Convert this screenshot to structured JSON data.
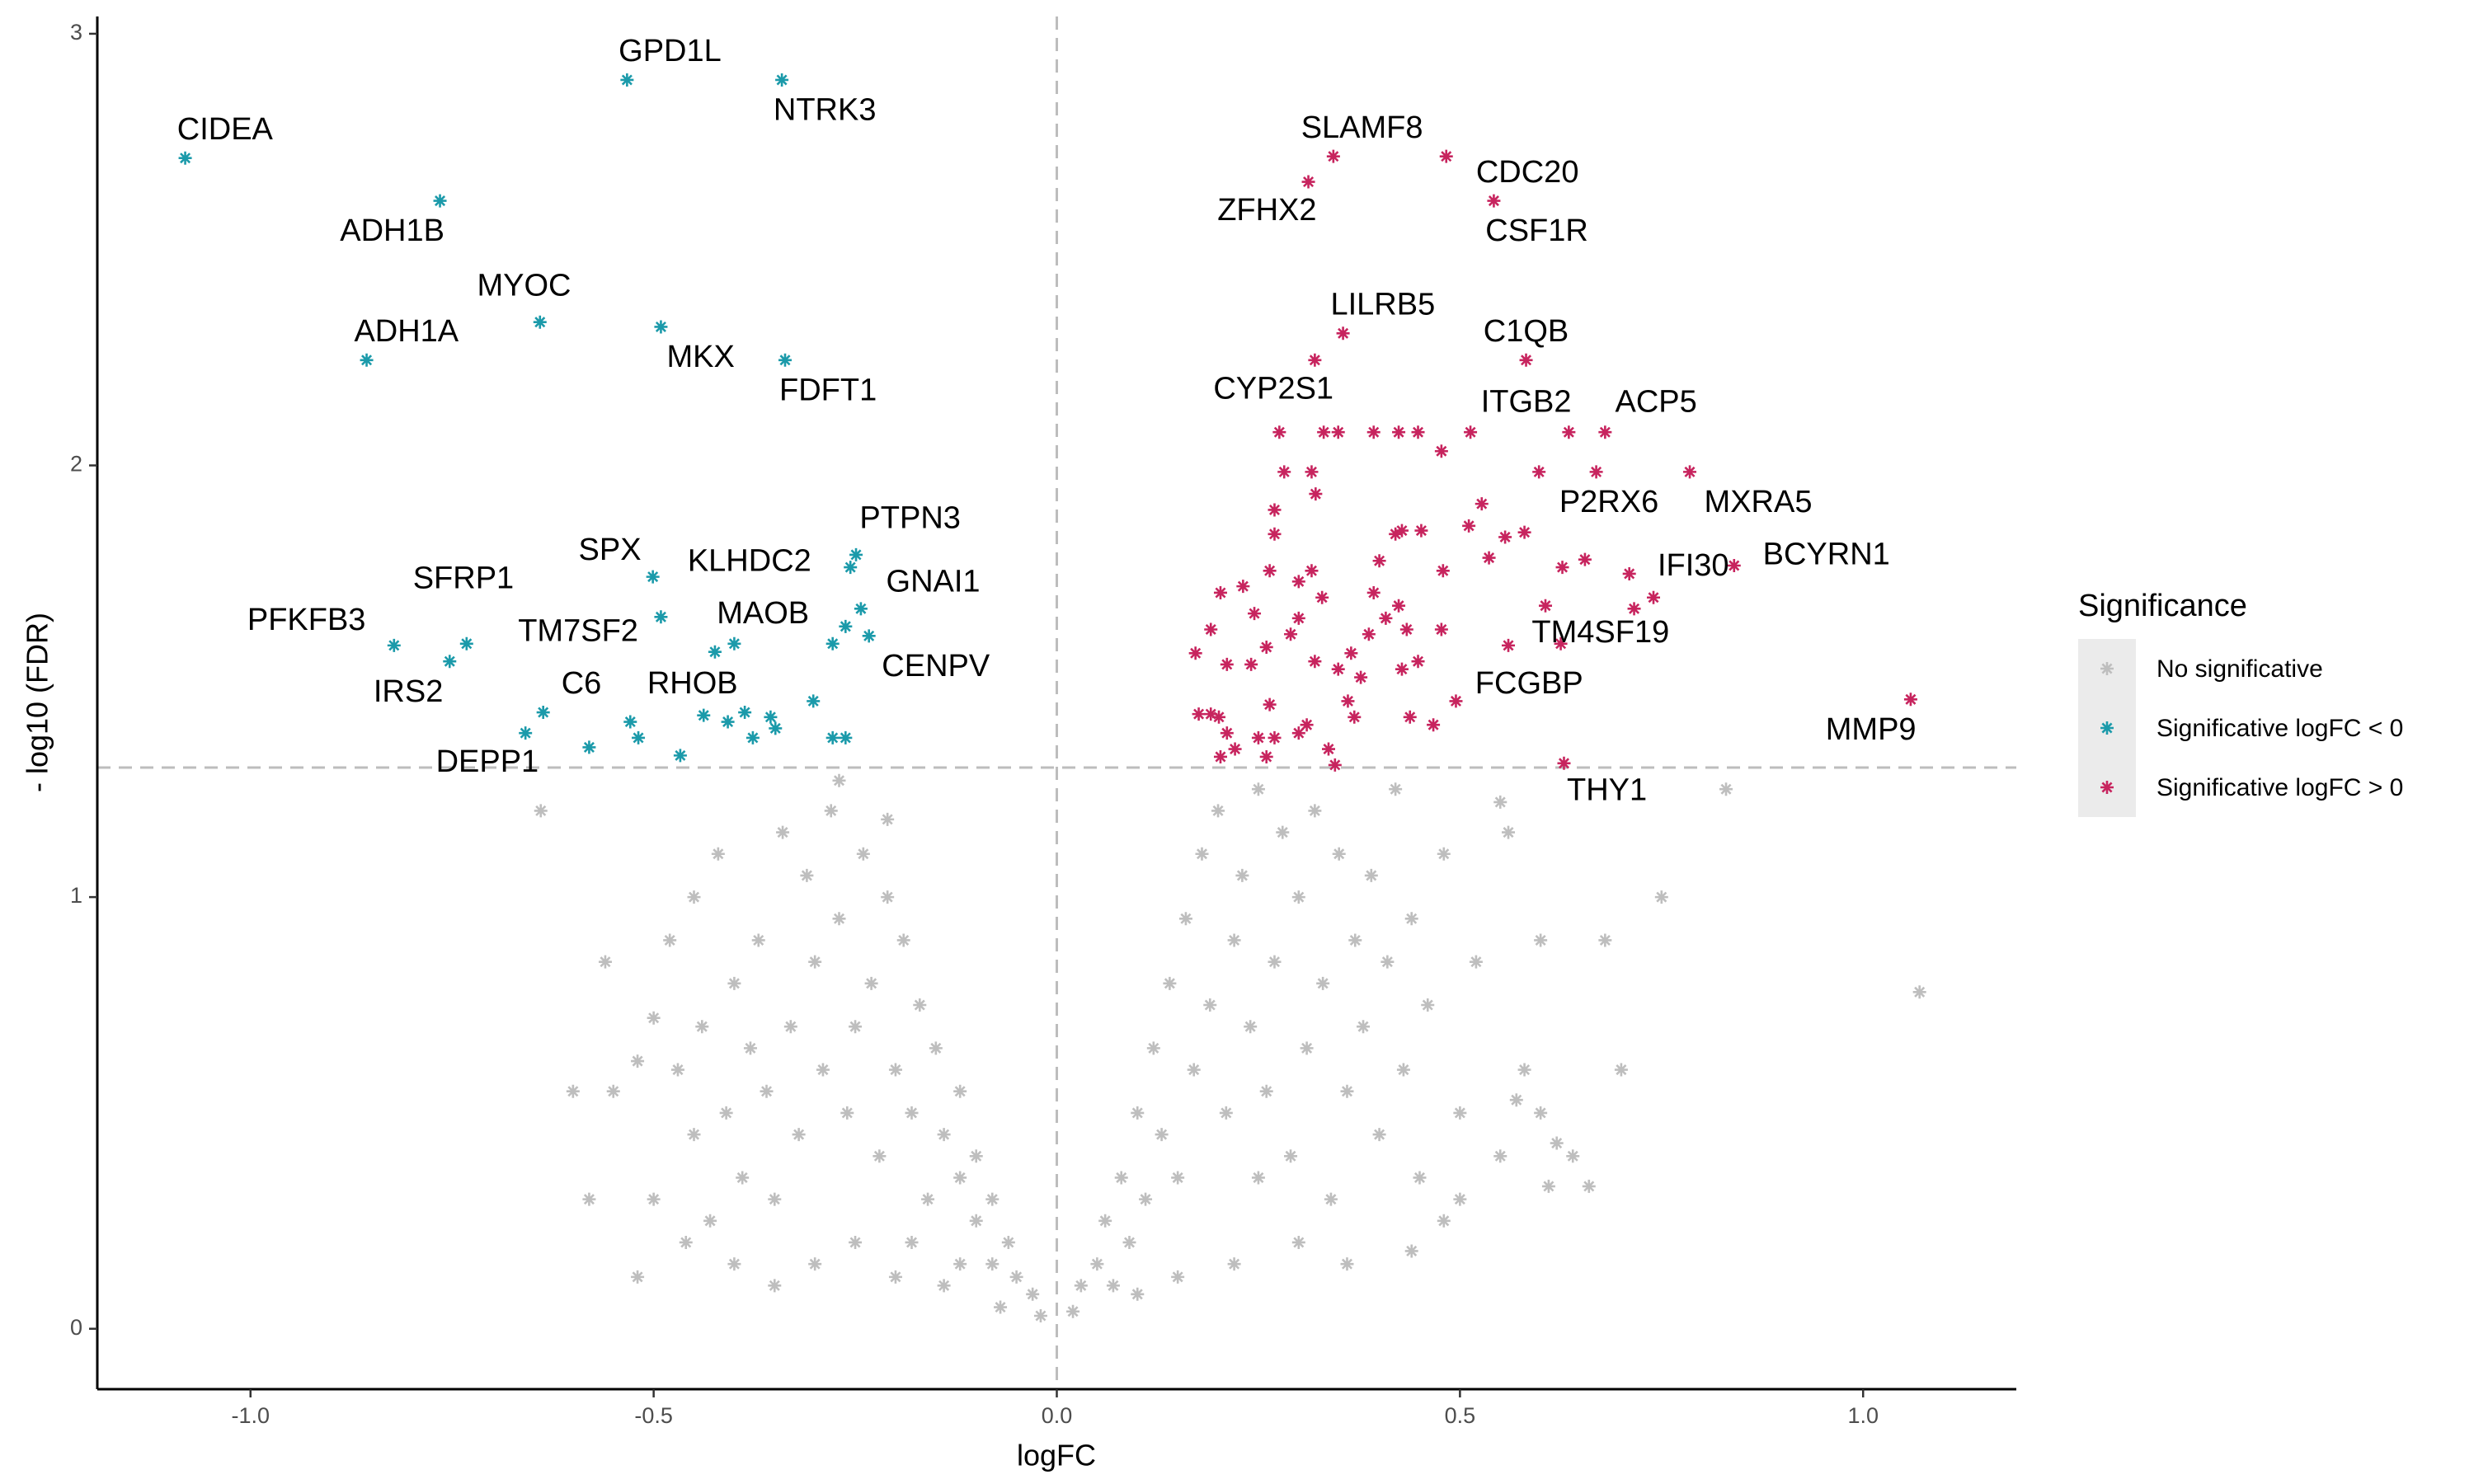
{
  "chart_data": {
    "type": "scatter",
    "xlabel": "logFC",
    "ylabel": "- log10 (FDR)",
    "xlim": [
      -1.19,
      1.19
    ],
    "ylim": [
      -0.14,
      3.04
    ],
    "xticks": [
      {
        "value": -1,
        "label": "-1.0"
      },
      {
        "value": -0.5,
        "label": "-0.5"
      },
      {
        "value": 0,
        "label": "0.0"
      },
      {
        "value": 0.5,
        "label": "0.5"
      },
      {
        "value": 1,
        "label": "1.0"
      }
    ],
    "yticks": [
      0,
      1,
      2,
      3
    ],
    "grid": false,
    "vlines": [
      0
    ],
    "hlines": [
      1.3
    ],
    "legend": "right",
    "legend_title": "Significance",
    "series": [
      {
        "name": "No significative",
        "color": "#bebebe",
        "x": [
          -0.02,
          -0.03,
          -0.05,
          -0.06,
          -0.08,
          -0.08,
          -0.1,
          -0.1,
          -0.12,
          -0.12,
          -0.14,
          -0.15,
          -0.16,
          -0.17,
          -0.18,
          -0.19,
          -0.2,
          -0.21,
          -0.22,
          -0.23,
          -0.24,
          -0.25,
          -0.26,
          -0.27,
          -0.28,
          -0.29,
          -0.3,
          -0.31,
          -0.32,
          -0.33,
          -0.34,
          -0.35,
          -0.36,
          -0.37,
          -0.38,
          -0.39,
          -0.4,
          -0.41,
          -0.42,
          -0.43,
          -0.44,
          -0.45,
          -0.46,
          -0.47,
          -0.48,
          -0.5,
          -0.52,
          -0.52,
          -0.5,
          -0.55,
          -0.56,
          -0.6,
          -0.58,
          -0.64,
          -0.45,
          -0.27,
          -0.21,
          -0.18,
          -0.14,
          -0.25,
          -0.3,
          -0.35,
          -0.12,
          -0.07,
          -0.2,
          -0.4,
          0.02,
          0.03,
          0.05,
          0.06,
          0.07,
          0.08,
          0.09,
          0.1,
          0.11,
          0.12,
          0.13,
          0.14,
          0.15,
          0.16,
          0.17,
          0.18,
          0.19,
          0.2,
          0.21,
          0.22,
          0.23,
          0.24,
          0.25,
          0.26,
          0.27,
          0.28,
          0.29,
          0.3,
          0.31,
          0.32,
          0.33,
          0.34,
          0.35,
          0.36,
          0.37,
          0.38,
          0.39,
          0.4,
          0.41,
          0.42,
          0.43,
          0.44,
          0.45,
          0.46,
          0.48,
          0.5,
          0.52,
          0.55,
          0.56,
          0.58,
          0.6,
          0.57,
          0.6,
          0.61,
          0.62,
          0.64,
          0.66,
          0.68,
          0.7,
          0.75,
          0.83,
          1.07,
          0.48,
          0.44,
          0.36,
          0.3,
          0.22,
          0.15,
          0.1,
          0.25,
          0.5,
          0.55
        ],
        "values": [
          0.03,
          0.08,
          0.12,
          0.2,
          0.15,
          0.3,
          0.25,
          0.4,
          0.35,
          0.55,
          0.45,
          0.65,
          0.3,
          0.75,
          0.5,
          0.9,
          0.6,
          1.0,
          0.4,
          0.8,
          1.1,
          0.7,
          0.5,
          0.95,
          1.2,
          0.6,
          0.85,
          1.05,
          0.45,
          0.7,
          1.15,
          0.3,
          0.55,
          0.9,
          0.65,
          0.35,
          0.8,
          0.5,
          1.1,
          0.25,
          0.7,
          0.45,
          0.2,
          0.6,
          0.9,
          0.3,
          0.12,
          0.62,
          0.72,
          0.55,
          0.85,
          0.55,
          0.3,
          1.2,
          1.0,
          1.27,
          1.18,
          0.2,
          0.1,
          0.2,
          0.15,
          0.1,
          0.15,
          0.05,
          0.12,
          0.15,
          0.04,
          0.1,
          0.15,
          0.25,
          0.1,
          0.35,
          0.2,
          0.5,
          0.3,
          0.65,
          0.45,
          0.8,
          0.35,
          0.95,
          0.6,
          1.1,
          0.75,
          1.2,
          0.5,
          0.9,
          1.05,
          0.7,
          1.25,
          0.55,
          0.85,
          1.15,
          0.4,
          1.0,
          0.65,
          1.2,
          0.8,
          0.3,
          1.1,
          0.55,
          0.9,
          0.7,
          1.05,
          0.45,
          0.85,
          1.25,
          0.6,
          0.95,
          0.35,
          0.75,
          1.1,
          0.5,
          0.85,
          0.4,
          1.15,
          0.6,
          0.9,
          0.53,
          0.5,
          0.33,
          0.43,
          0.4,
          0.33,
          0.9,
          0.6,
          1.0,
          1.25,
          0.78,
          0.25,
          0.18,
          0.15,
          0.2,
          0.15,
          0.12,
          0.08,
          0.35,
          0.3,
          1.22
        ]
      },
      {
        "name": "Significative logFC < 0",
        "color": "#1b9aaa",
        "x": [
          -1.081,
          -0.533,
          -0.341,
          -0.765,
          -0.641,
          -0.491,
          -0.856,
          -0.337,
          -0.249,
          -0.256,
          -0.501,
          -0.243,
          -0.491,
          -0.4,
          -0.822,
          -0.732,
          -0.753,
          -0.233,
          -0.637,
          -0.438,
          -0.58,
          -0.424,
          -0.262,
          -0.278,
          -0.659,
          -0.302,
          -0.529,
          -0.519,
          -0.408,
          -0.387,
          -0.377,
          -0.355,
          -0.349,
          -0.278,
          -0.262,
          -0.467
        ],
        "values": [
          2.712,
          2.893,
          2.893,
          2.613,
          2.332,
          2.321,
          2.244,
          2.244,
          1.793,
          1.764,
          1.742,
          1.668,
          1.649,
          1.587,
          1.583,
          1.587,
          1.546,
          1.605,
          1.428,
          1.421,
          1.347,
          1.568,
          1.627,
          1.587,
          1.38,
          1.454,
          1.406,
          1.369,
          1.406,
          1.428,
          1.369,
          1.417,
          1.391,
          1.369,
          1.369,
          1.328
        ],
        "labels": [
          "CIDEA",
          "GPD1L",
          "NTRK3",
          "ADH1B",
          "MYOC",
          "MKX",
          "ADH1A",
          "FDFT1",
          "PTPN3",
          "GNAI1",
          "SPX",
          "KLHDC2",
          "TM7SF2",
          "MAOB",
          "PFKFB3",
          "SFRP1",
          "IRS2",
          "CENPV",
          "C6",
          "RHOB",
          "DEPP1",
          null,
          null,
          null,
          null,
          null,
          null,
          null,
          null,
          null,
          null,
          null,
          null,
          null,
          null,
          null
        ]
      },
      {
        "name": "Significative logFC > 0",
        "color": "#c7245e",
        "x": [
          0.343,
          0.483,
          0.312,
          0.542,
          0.355,
          0.582,
          0.32,
          0.513,
          0.68,
          0.669,
          0.785,
          0.84,
          0.74,
          0.625,
          0.495,
          1.059,
          0.629,
          0.276,
          0.331,
          0.349,
          0.393,
          0.424,
          0.448,
          0.477,
          0.635,
          0.598,
          0.71,
          0.716,
          0.655,
          0.627,
          0.58,
          0.556,
          0.527,
          0.511,
          0.479,
          0.452,
          0.428,
          0.42,
          0.4,
          0.393,
          0.424,
          0.408,
          0.434,
          0.387,
          0.365,
          0.377,
          0.361,
          0.369,
          0.345,
          0.337,
          0.31,
          0.3,
          0.27,
          0.25,
          0.211,
          0.201,
          0.176,
          0.191,
          0.203,
          0.264,
          0.241,
          0.211,
          0.26,
          0.3,
          0.329,
          0.316,
          0.3,
          0.264,
          0.231,
          0.203,
          0.245,
          0.27,
          0.282,
          0.316,
          0.321,
          0.27,
          0.29,
          0.32,
          0.349,
          0.438,
          0.467,
          0.56,
          0.606,
          0.536,
          0.477,
          0.448,
          0.191,
          0.172,
          0.26,
          0.221,
          0.428
        ],
        "values": [
          2.716,
          2.716,
          2.657,
          2.613,
          2.306,
          2.244,
          2.244,
          2.077,
          2.077,
          1.985,
          1.985,
          1.768,
          1.694,
          1.587,
          1.454,
          1.458,
          1.31,
          2.077,
          2.077,
          2.077,
          2.077,
          2.077,
          2.077,
          2.033,
          2.077,
          1.985,
          1.749,
          1.668,
          1.782,
          1.764,
          1.845,
          1.834,
          1.911,
          1.86,
          1.756,
          1.849,
          1.849,
          1.841,
          1.779,
          1.705,
          1.675,
          1.646,
          1.62,
          1.609,
          1.565,
          1.509,
          1.454,
          1.417,
          1.306,
          1.343,
          1.399,
          1.38,
          1.369,
          1.369,
          1.38,
          1.417,
          1.424,
          1.424,
          1.325,
          1.446,
          1.539,
          1.539,
          1.579,
          1.646,
          1.694,
          1.756,
          1.731,
          1.756,
          1.72,
          1.705,
          1.657,
          1.841,
          1.985,
          1.985,
          1.934,
          1.897,
          1.609,
          1.546,
          1.528,
          1.417,
          1.399,
          1.583,
          1.675,
          1.786,
          1.62,
          1.546,
          1.62,
          1.565,
          1.325,
          1.343,
          1.528
        ],
        "labels": [
          "SLAMF8",
          "CDC20",
          "ZFHX2",
          "CSF1R",
          "LILRB5",
          "C1QB",
          "CYP2S1",
          "ITGB2",
          "ACP5",
          "P2RX6",
          "MXRA5",
          "BCYRN1",
          "IFI30",
          "TM4SF19",
          "FCGBP",
          "MMP9",
          "THY1",
          null,
          null,
          null,
          null,
          null,
          null,
          null,
          null,
          null,
          null,
          null,
          null,
          null,
          null,
          null,
          null,
          null,
          null,
          null,
          null,
          null,
          null,
          null,
          null,
          null,
          null,
          null,
          null,
          null,
          null,
          null,
          null,
          null,
          null,
          null,
          null,
          null,
          null,
          null,
          null,
          null,
          null,
          null,
          null,
          null,
          null,
          null,
          null,
          null,
          null,
          null,
          null,
          null,
          null,
          null,
          null,
          null,
          null,
          null,
          null,
          null,
          null,
          null,
          null,
          null,
          null,
          null,
          null,
          null,
          null,
          null,
          null,
          null,
          null
        ]
      }
    ]
  }
}
